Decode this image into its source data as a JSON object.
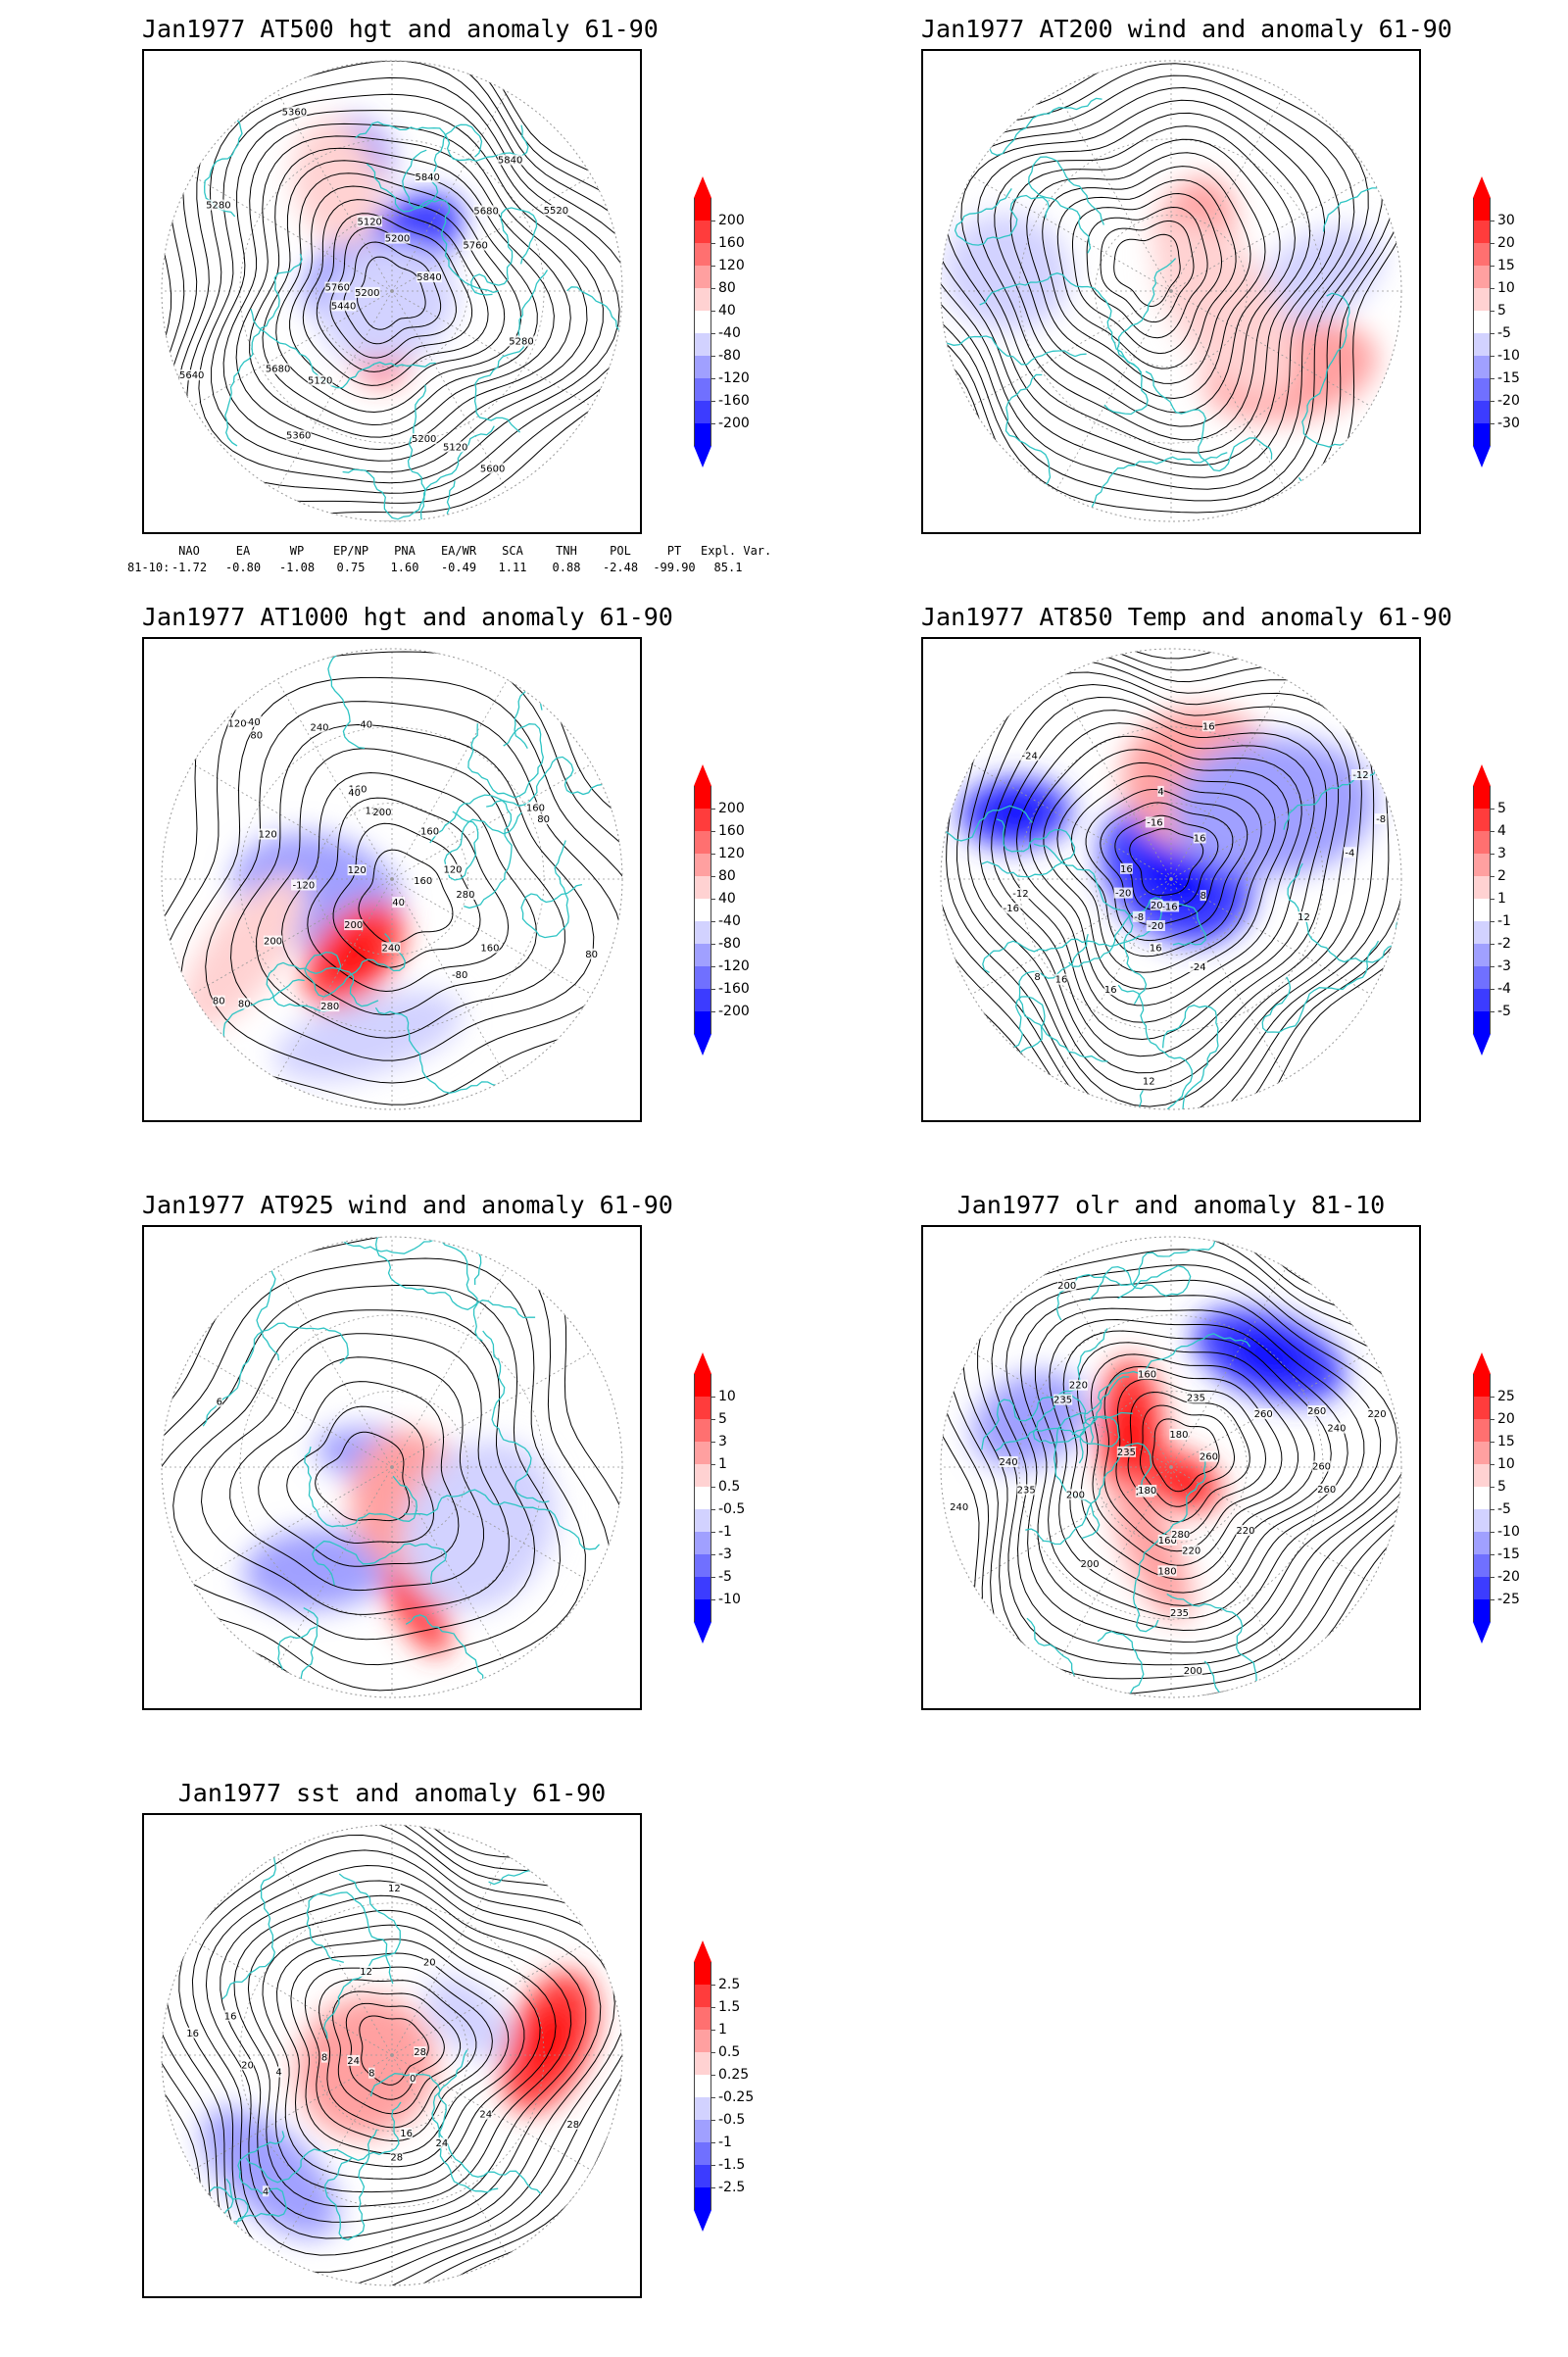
{
  "panels": [
    {
      "title": "Jan1977 AT500 hgt and anomaly 61-90",
      "colorbar": [
        "200",
        "160",
        "120",
        "80",
        "40",
        "-40",
        "-80",
        "-120",
        "-160",
        "-200"
      ],
      "contour_labels": [
        "5640",
        "5840",
        "5840",
        "5680",
        "5760",
        "5200",
        "5120",
        "5120",
        "5200",
        "5120",
        "5360",
        "5280",
        "5200",
        "5360",
        "5280",
        "5440",
        "5520",
        "5600",
        "5680",
        "5760",
        "5840"
      ],
      "anomaly_features": [
        {
          "sign": "neg",
          "strength": 3
        },
        {
          "sign": "pos",
          "strength": 3
        },
        {
          "sign": "neg",
          "strength": 3
        },
        {
          "sign": "pos",
          "strength": 1
        },
        {
          "sign": "neg",
          "strength": 1
        }
      ]
    },
    {
      "title": "Jan1977 AT200 wind and anomaly 61-90",
      "colorbar": [
        "30",
        "20",
        "15",
        "10",
        "5",
        "-5",
        "-10",
        "-15",
        "-20",
        "-30"
      ],
      "contour_labels": [],
      "anomaly_features": [
        {
          "sign": "pos",
          "strength": 2
        },
        {
          "sign": "pos",
          "strength": 2
        },
        {
          "sign": "neg",
          "strength": 1
        },
        {
          "sign": "pos",
          "strength": 1
        },
        {
          "sign": "neg",
          "strength": 1
        }
      ]
    },
    {
      "title": "Jan1977 AT1000 hgt and anomaly 61-90",
      "colorbar": [
        "200",
        "160",
        "120",
        "80",
        "40",
        "-40",
        "-80",
        "-120",
        "-160",
        "-200"
      ],
      "contour_labels": [
        "80",
        "120",
        "160",
        "80",
        "40",
        "-40",
        "-80",
        "-120",
        "200",
        "280",
        "240",
        "160",
        "120",
        "40",
        "200",
        "160",
        "40",
        "80",
        "240",
        "200",
        "160",
        "120",
        "160",
        "120",
        "80",
        "80",
        "120",
        "280"
      ],
      "anomaly_features": [
        {
          "sign": "neg",
          "strength": 2
        },
        {
          "sign": "pos",
          "strength": 3
        },
        {
          "sign": "neg",
          "strength": 1
        },
        {
          "sign": "pos",
          "strength": 1
        }
      ]
    },
    {
      "title": "Jan1977 AT850 Temp and anomaly 61-90",
      "colorbar": [
        "5",
        "4",
        "3",
        "2",
        "1",
        "-1",
        "-2",
        "-3",
        "-4",
        "-5"
      ],
      "contour_labels": [
        "16",
        "12",
        "8",
        "-8",
        "-12",
        "-16",
        "-24",
        "-20",
        "-16",
        "-24",
        "-20",
        "-16",
        "-12",
        "-8",
        "-4",
        "4",
        "8",
        "12",
        "16",
        "16",
        "16",
        "16",
        "20",
        "16"
      ],
      "anomaly_features": [
        {
          "sign": "neg",
          "strength": 3
        },
        {
          "sign": "pos",
          "strength": 3
        },
        {
          "sign": "neg",
          "strength": 3
        },
        {
          "sign": "pos",
          "strength": 2
        },
        {
          "sign": "neg",
          "strength": 2
        }
      ]
    },
    {
      "title": "Jan1977 AT925 wind and anomaly 61-90",
      "colorbar": [
        "10",
        "5",
        "3",
        "1",
        "0.5",
        "-0.5",
        "-1",
        "-3",
        "-5",
        "-10"
      ],
      "contour_labels": [
        "6"
      ],
      "anomaly_features": [
        {
          "sign": "pos",
          "strength": 3
        },
        {
          "sign": "neg",
          "strength": 2
        },
        {
          "sign": "neg",
          "strength": 2
        },
        {
          "sign": "pos",
          "strength": 2
        },
        {
          "sign": "neg",
          "strength": 1
        }
      ]
    },
    {
      "title": "Jan1977 olr and anomaly 81-10",
      "colorbar": [
        "25",
        "20",
        "15",
        "10",
        "5",
        "-5",
        "-10",
        "-15",
        "-20",
        "-25"
      ],
      "contour_labels": [
        "235",
        "220",
        "200",
        "260",
        "240",
        "220",
        "200",
        "235",
        "260",
        "235",
        "220",
        "180",
        "200",
        "180",
        "160",
        "180",
        "160",
        "200",
        "220",
        "235",
        "240",
        "260",
        "280",
        "240",
        "235",
        "260",
        "260",
        "235"
      ],
      "anomaly_features": [
        {
          "sign": "pos",
          "strength": 3
        },
        {
          "sign": "neg",
          "strength": 3
        },
        {
          "sign": "pos",
          "strength": 3
        },
        {
          "sign": "neg",
          "strength": 2
        },
        {
          "sign": "pos",
          "strength": 2
        }
      ]
    },
    {
      "title": "Jan1977 sst and anomaly 61-90",
      "colorbar": [
        "2.5",
        "1.5",
        "1",
        "0.5",
        "0.25",
        "-0.25",
        "-0.5",
        "-1",
        "-1.5",
        "-2.5"
      ],
      "contour_labels": [
        "28",
        "24",
        "20",
        "16",
        "12",
        "8",
        "4",
        "0",
        "28",
        "24",
        "16",
        "12",
        "8",
        "4",
        "24",
        "20",
        "16",
        "28"
      ],
      "anomaly_features": [
        {
          "sign": "pos",
          "strength": 3
        },
        {
          "sign": "neg",
          "strength": 2
        },
        {
          "sign": "pos",
          "strength": 2
        },
        {
          "sign": "neg",
          "strength": 1
        }
      ]
    }
  ],
  "index_table": {
    "headers": [
      "NAO",
      "EA",
      "WP",
      "EP/NP",
      "PNA",
      "EA/WR",
      "SCA",
      "TNH",
      "POL",
      "PT",
      "Expl. Var."
    ],
    "row_label": "81-10:",
    "values": [
      "-1.72",
      "-0.80",
      "-1.08",
      "0.75",
      "1.60",
      "-0.49",
      "1.11",
      "0.88",
      "-2.48",
      "-99.90",
      "85.1"
    ]
  },
  "colors": {
    "coast": "#2ec4c4",
    "contour": "#000000",
    "grid": "#999999",
    "pos_ramp": [
      "#ff0000",
      "#ff3c3c",
      "#ff7070",
      "#ffa0a0",
      "#ffd2d2",
      "#ffffff"
    ],
    "neg_ramp": [
      "#ffffff",
      "#d2d2ff",
      "#a0a0ff",
      "#7070ff",
      "#3c3cff",
      "#0000ff"
    ]
  }
}
